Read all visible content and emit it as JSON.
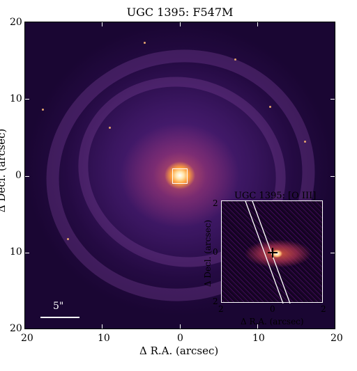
{
  "title": "UGC 1395: F547M",
  "axes": {
    "x_label": "Δ R.A. (arcsec)",
    "y_label": "Δ Decl. (arcsec)",
    "x_ticks": [
      "20",
      "10",
      "0",
      "10",
      "20"
    ],
    "y_ticks": [
      "20",
      "10",
      "0",
      "10",
      "20"
    ]
  },
  "scalebar": {
    "label": "5\""
  },
  "inset": {
    "title": "UGC 1395: [O III]",
    "x_label": "Δ R.A. (arcsec)",
    "y_label": "Δ Decl. (arcsec)",
    "x_ticks": [
      "2",
      "0",
      "2"
    ],
    "y_ticks": [
      "2",
      "0",
      "2"
    ]
  },
  "colors": {
    "background": "#1a0633",
    "galaxy_mid": "#5a2384",
    "nucleus": "#ffa23e",
    "overlay": "#ffffff"
  }
}
